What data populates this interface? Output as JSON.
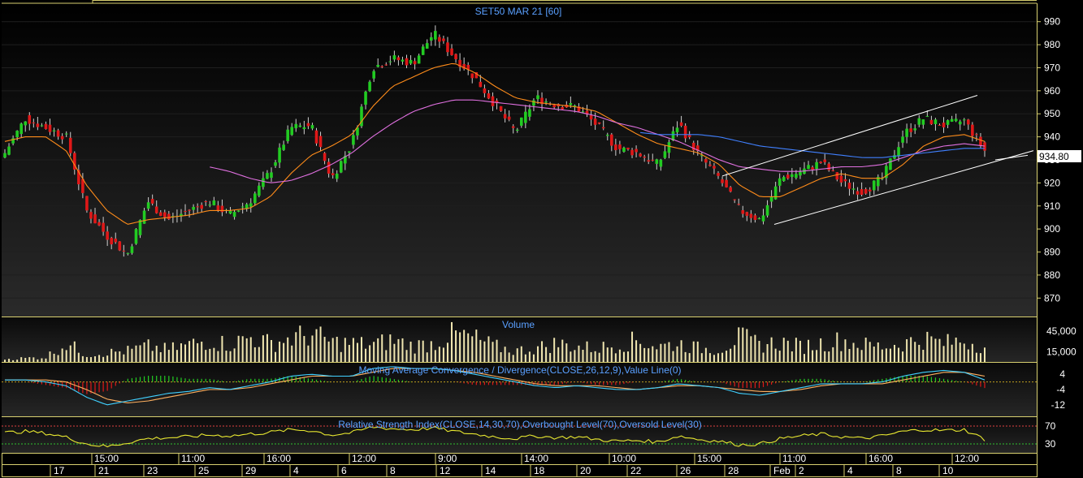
{
  "colors": {
    "background": "#000000",
    "border": "#d8d070",
    "title": "#5aa0ff",
    "axis_text": "#ffffff",
    "candle_up": "#22cc22",
    "candle_down": "#e01818",
    "sma_short": "#ff8c1a",
    "sma_mid": "#e070e0",
    "sma_long": "#4080ff",
    "volume_bar": "#f0e6b0",
    "macd_line": "#40d0ff",
    "macd_signal": "#ffb060",
    "macd_hist_up": "#22cc22",
    "macd_hist_down": "#e01818",
    "rsi_line": "#e8e830",
    "ob_level": "#e04040",
    "os_level": "#30c030",
    "price_tag_bg": "#ffffff",
    "price_tag_text": "#000000",
    "trendline": "#ffffff"
  },
  "chart_data": [
    {
      "type": "candlestick",
      "title": "SET50 MAR 21   [60]",
      "ylim": [
        862,
        998
      ],
      "y_ticks": [
        990,
        980,
        970,
        960,
        950,
        940,
        930,
        920,
        910,
        900,
        890,
        880,
        870
      ],
      "last_price_label": "934.80",
      "last_price": 934.8,
      "grid": true,
      "anchor_close": [
        933,
        948,
        944,
        940,
        908,
        897,
        889,
        912,
        904,
        908,
        912,
        906,
        912,
        925,
        944,
        945,
        922,
        937,
        970,
        974,
        972,
        985,
        975,
        966,
        954,
        942,
        957,
        954,
        953,
        945,
        935,
        933,
        928,
        946,
        932,
        922,
        908,
        904,
        922,
        925,
        929,
        920,
        916,
        922,
        941,
        948,
        945,
        947,
        934
      ],
      "sma_short": [
        938,
        940,
        940,
        934,
        919,
        908,
        902,
        904,
        905,
        906,
        908,
        908,
        909,
        914,
        924,
        932,
        936,
        941,
        953,
        962,
        966,
        970,
        972,
        968,
        962,
        957,
        955,
        954,
        953,
        951,
        946,
        941,
        937,
        935,
        933,
        928,
        919,
        914,
        914,
        918,
        922,
        924,
        922,
        922,
        928,
        936,
        940,
        941,
        938
      ],
      "sma_mid": [
        null,
        null,
        null,
        null,
        null,
        null,
        null,
        null,
        null,
        null,
        927,
        925,
        922,
        920,
        921,
        924,
        928,
        933,
        940,
        946,
        951,
        954,
        956,
        956,
        955,
        954,
        953,
        952,
        951,
        949,
        946,
        944,
        941,
        938,
        934,
        930,
        927,
        926,
        925,
        925,
        926,
        927,
        927,
        928,
        931,
        934,
        936,
        937,
        936
      ],
      "sma_long": [
        null,
        null,
        null,
        null,
        null,
        null,
        null,
        null,
        null,
        null,
        null,
        null,
        null,
        null,
        null,
        null,
        null,
        null,
        null,
        null,
        null,
        null,
        null,
        null,
        null,
        null,
        null,
        null,
        null,
        null,
        null,
        942,
        941,
        941,
        941,
        940,
        938,
        936,
        935,
        934,
        933,
        932,
        931,
        931,
        932,
        933,
        934,
        935,
        935
      ],
      "trend_upper": [
        [
          889,
          923
        ],
        [
          1203,
          958
        ]
      ],
      "trend_lower": [
        [
          953,
          902
        ],
        [
          1272,
          934
        ]
      ],
      "trend_extra": [
        [
          1225,
          930
        ],
        [
          1265,
          932
        ]
      ]
    },
    {
      "type": "bar",
      "title": "Volume",
      "y_ticks": [
        "45,000",
        "15,000"
      ],
      "y_tick_values": [
        45000,
        15000
      ],
      "ylim": [
        0,
        65000
      ],
      "anchor_values": [
        5000,
        6000,
        8000,
        30000,
        12000,
        15000,
        18000,
        25000,
        20000,
        28000,
        35000,
        28000,
        40000,
        30000,
        38000,
        45000,
        32000,
        30000,
        28000,
        35000,
        26000,
        30000,
        45000,
        38000,
        25000,
        18000,
        22000,
        30000,
        25000,
        22000,
        28000,
        35000,
        25000,
        30000,
        22000,
        20000,
        40000,
        28000,
        32000,
        25000,
        30000,
        35000,
        28000,
        25000,
        30000,
        38000,
        30000,
        35000,
        25000
      ]
    },
    {
      "type": "line",
      "title": "Moving Average Convergence / Divergence(CLOSE,26,12,9),Value Line(0)",
      "y_ticks": [
        "4",
        "-4",
        "-12"
      ],
      "y_tick_values": [
        4,
        -4,
        -12
      ],
      "ylim": [
        -18,
        10
      ],
      "anchor_macd": [
        1,
        1,
        0,
        -2,
        -8,
        -12,
        -10,
        -8,
        -6,
        -5,
        -3,
        -4,
        -2,
        0,
        3,
        4,
        3,
        3,
        7,
        8,
        7,
        7,
        6,
        4,
        2,
        0,
        -2,
        -3,
        -2,
        -3,
        -4,
        -4,
        -3,
        -1,
        -2,
        -3,
        -6,
        -7,
        -5,
        -3,
        -1,
        -1,
        -1,
        0,
        3,
        5,
        6,
        5,
        1
      ],
      "anchor_signal": [
        1,
        1,
        1,
        0,
        -4,
        -9,
        -11,
        -10,
        -8,
        -6,
        -4,
        -4,
        -3,
        -1,
        1,
        3,
        3,
        3,
        5,
        7,
        7,
        7,
        6,
        5,
        3,
        1,
        -1,
        -2,
        -2,
        -2,
        -3,
        -4,
        -3,
        -2,
        -2,
        -3,
        -4,
        -5,
        -5,
        -4,
        -2,
        -1,
        -1,
        -1,
        1,
        3,
        5,
        5,
        3
      ]
    },
    {
      "type": "line",
      "title": "Relative Strength Index(CLOSE,14,30,70),Overbought Level(70),Oversold Level(30)",
      "y_ticks": [
        "70",
        "30"
      ],
      "y_tick_values": [
        70,
        30
      ],
      "ylim": [
        10,
        90
      ],
      "anchor_rsi": [
        55,
        58,
        54,
        45,
        30,
        24,
        33,
        42,
        44,
        46,
        50,
        48,
        52,
        56,
        62,
        60,
        50,
        55,
        68,
        64,
        62,
        66,
        58,
        52,
        46,
        42,
        48,
        44,
        46,
        40,
        36,
        38,
        34,
        48,
        40,
        36,
        28,
        30,
        42,
        48,
        52,
        46,
        42,
        48,
        58,
        62,
        60,
        62,
        40
      ]
    }
  ],
  "x_axis": {
    "time_labels": [
      "15:00",
      "11:00",
      "16:00",
      "12:00",
      "9:00",
      "14:00",
      "10:00",
      "15:00",
      "11:00",
      "16:00",
      "12:00"
    ],
    "date_labels": [
      "17",
      "21",
      "23",
      "25",
      "29",
      "4",
      "6",
      "8",
      "12",
      "14",
      "18",
      "20",
      "22",
      "26",
      "28",
      "Feb",
      "2",
      "4",
      "8",
      "10"
    ]
  }
}
